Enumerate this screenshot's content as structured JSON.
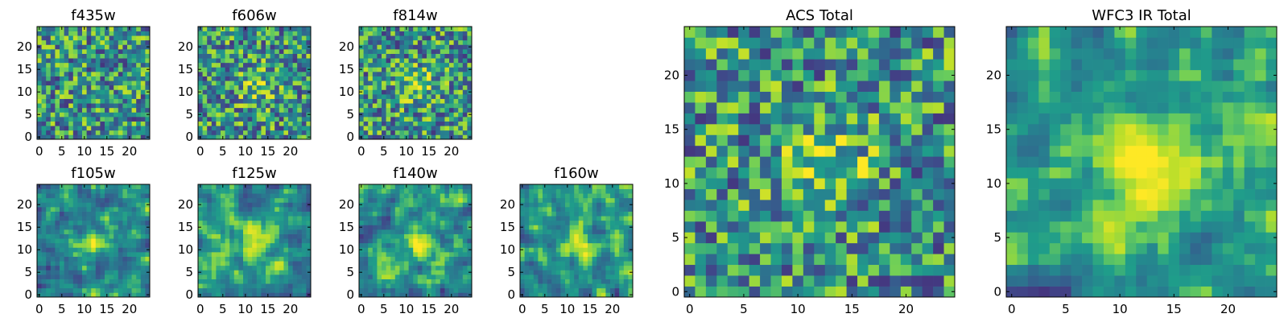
{
  "figure": {
    "background": "#ffffff",
    "colormap": "viridis"
  },
  "chart_data": [
    {
      "type": "heatmap",
      "title": "f435w",
      "pixel_grid": [
        25,
        25
      ],
      "xlim": [
        0,
        24
      ],
      "ylim": [
        0,
        24
      ],
      "xticks": [
        "0",
        "5",
        "10",
        "15",
        "20"
      ],
      "yticks": [
        "0",
        "5",
        "10",
        "15",
        "20"
      ],
      "pattern": "noise"
    },
    {
      "type": "heatmap",
      "title": "f606w",
      "pixel_grid": [
        25,
        25
      ],
      "xlim": [
        0,
        24
      ],
      "ylim": [
        0,
        24
      ],
      "xticks": [
        "0",
        "5",
        "10",
        "15",
        "20"
      ],
      "yticks": [
        "0",
        "5",
        "10",
        "15",
        "20"
      ],
      "pattern": "noise with faint central source"
    },
    {
      "type": "heatmap",
      "title": "f814w",
      "pixel_grid": [
        25,
        25
      ],
      "xlim": [
        0,
        24
      ],
      "ylim": [
        0,
        24
      ],
      "xticks": [
        "0",
        "5",
        "10",
        "15",
        "20"
      ],
      "yticks": [
        "0",
        "5",
        "10",
        "15",
        "20"
      ],
      "pattern": "noise with faint central source"
    },
    {
      "type": "heatmap",
      "title": "f105w",
      "pixel_grid": [
        25,
        25
      ],
      "xlim": [
        0,
        24
      ],
      "ylim": [
        0,
        24
      ],
      "xticks": [
        "0",
        "5",
        "10",
        "15",
        "20"
      ],
      "yticks": [
        "0",
        "5",
        "10",
        "15",
        "20"
      ],
      "pattern": "smooth with central source"
    },
    {
      "type": "heatmap",
      "title": "f125w",
      "pixel_grid": [
        25,
        25
      ],
      "xlim": [
        0,
        24
      ],
      "ylim": [
        0,
        24
      ],
      "xticks": [
        "0",
        "5",
        "10",
        "15",
        "20"
      ],
      "yticks": [
        "0",
        "5",
        "10",
        "15",
        "20"
      ],
      "pattern": "smooth with central source"
    },
    {
      "type": "heatmap",
      "title": "f140w",
      "pixel_grid": [
        25,
        25
      ],
      "xlim": [
        0,
        24
      ],
      "ylim": [
        0,
        24
      ],
      "xticks": [
        "0",
        "5",
        "10",
        "15",
        "20"
      ],
      "yticks": [
        "0",
        "5",
        "10",
        "15",
        "20"
      ],
      "pattern": "smooth with central source"
    },
    {
      "type": "heatmap",
      "title": "f160w",
      "pixel_grid": [
        25,
        25
      ],
      "xlim": [
        0,
        24
      ],
      "ylim": [
        0,
        24
      ],
      "xticks": [
        "0",
        "5",
        "10",
        "15",
        "20"
      ],
      "yticks": [
        "0",
        "5",
        "10",
        "15",
        "20"
      ],
      "pattern": "smooth with central source"
    },
    {
      "type": "heatmap",
      "title": "ACS Total",
      "pixel_grid": [
        25,
        25
      ],
      "xlim": [
        0,
        24
      ],
      "ylim": [
        0,
        24
      ],
      "xticks": [
        "0",
        "5",
        "10",
        "15",
        "20"
      ],
      "yticks": [
        "0",
        "5",
        "10",
        "15",
        "20"
      ],
      "pattern": "noise with central source"
    },
    {
      "type": "heatmap",
      "title": "WFC3 IR Total",
      "pixel_grid": [
        25,
        25
      ],
      "xlim": [
        0,
        24
      ],
      "ylim": [
        0,
        24
      ],
      "xticks": [
        "0",
        "5",
        "10",
        "15",
        "20"
      ],
      "yticks": [
        "0",
        "5",
        "10",
        "15",
        "20"
      ],
      "pattern": "smooth with central source"
    }
  ]
}
